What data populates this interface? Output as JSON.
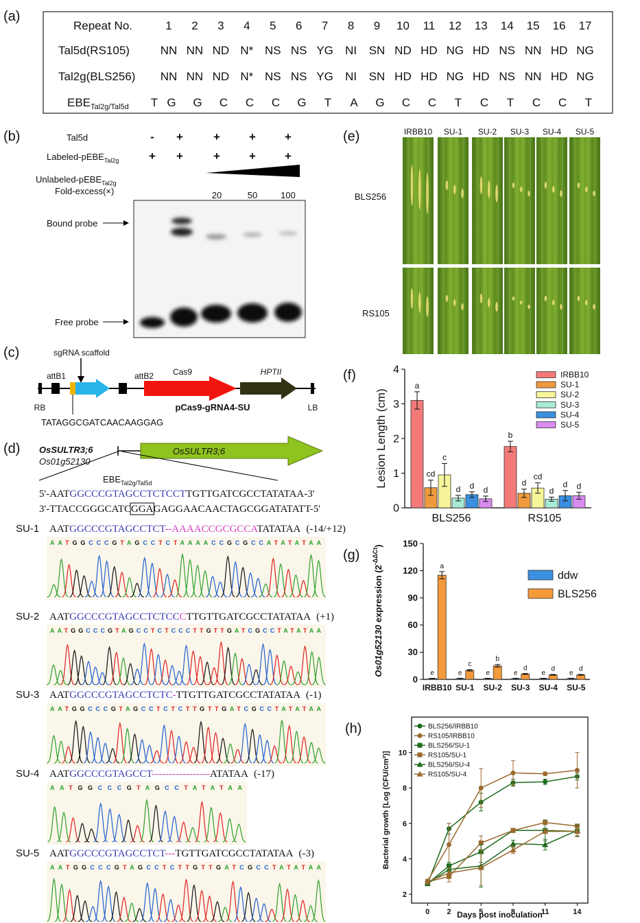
{
  "panel_labels": [
    "(a)",
    "(b)",
    "(c)",
    "(d)",
    "(e)",
    "(f)",
    "(g)",
    "(h)"
  ],
  "panel_a": {
    "header": "Repeat No.",
    "repeats": [
      1,
      2,
      3,
      4,
      5,
      6,
      7,
      8,
      9,
      10,
      11,
      12,
      13,
      14,
      15,
      16,
      17
    ],
    "rows": [
      {
        "name": "Tal5d(RS105)",
        "rvds": [
          "NN",
          "NN",
          "ND",
          "N*",
          "NS",
          "NS",
          "YG",
          "NI",
          "SN",
          "ND",
          "HD",
          "NG",
          "HD",
          "NS",
          "NN",
          "HD",
          "NG"
        ]
      },
      {
        "name": "Tal2g(BLS256)",
        "rvds": [
          "NN",
          "NN",
          "ND",
          "N*",
          "NS",
          "NS",
          "YG",
          "NI",
          "SN",
          "HD",
          "HD",
          "NG",
          "HD",
          "NS",
          "NN",
          "HD",
          "NG"
        ]
      }
    ],
    "ebe": {
      "label": "EBE",
      "sub": "Tal2g/Tal5d",
      "bases": [
        "T",
        "G",
        "G",
        "C",
        "C",
        "C",
        "G",
        "T",
        "A",
        "G",
        "C",
        "C",
        "T",
        "C",
        "T",
        "C",
        "C",
        "T"
      ]
    },
    "highlight_index": 9,
    "highlight_color": "#e8201f"
  },
  "panel_b": {
    "rows": [
      {
        "label": "Tal5d",
        "marks": [
          "-",
          "+",
          "+",
          "+",
          "+"
        ]
      },
      {
        "label": "Labeled-pEBE",
        "sub": "Tal2g",
        "marks": [
          "+",
          "+",
          "+",
          "+",
          "+"
        ]
      }
    ],
    "unlabeled": {
      "label": "Unlabeled-pEBE",
      "sub": "Tal2g"
    },
    "fold_label": "Fold-excess(×)",
    "folds": [
      20,
      50,
      100
    ],
    "bound": "Bound probe",
    "free": "Free probe"
  },
  "panel_c": {
    "scaffold": "sgRNA scaffold",
    "attB1": "attB1",
    "attB2": "attB2",
    "cas9": "Cas9",
    "hpt": "HPTII",
    "rb": "RB",
    "lb": "LB",
    "vector": "pCas9-gRNA4-SU",
    "target": "TATAGGCGATCAACAAGGAG"
  },
  "panel_d": {
    "gene": "OsSULTR3;6",
    "locus": "Os01g52130",
    "arrow": "OsSULTR3;6",
    "ebe": "EBE",
    "ebe_sub": "Tal2g/Tal5d",
    "top": [
      "5'-AAT",
      "GGCCCGTAGCCTCTCCT",
      "TGTTGATCGCCTATATAA-3'"
    ],
    "bottom": [
      "3'-TTACCGGGCATC",
      "GGA",
      "GAGGAACAACTAGCGGATATATT-5'"
    ],
    "mutants": [
      {
        "name": "SU-1",
        "seq": [
          "AAT",
          "GGCCCGTAGCCTCT",
          "--AAAACCGCGCCA",
          "TATATAA"
        ],
        "indel": "(-14/+12)",
        "trace": "AATGGCCCGTAGCCTCTAAAACCGCGCCATATATAA"
      },
      {
        "name": "SU-2",
        "seq": [
          "AAT",
          "GGCCCGTAGCCTCTCC",
          "C",
          "TTGTTGATCGCCTATATAA"
        ],
        "indel": "(+1)",
        "trace": "AATGGCCCGTAGCCTCTCCCTTGTTGATCGCCTATATAA"
      },
      {
        "name": "SU-3",
        "seq": [
          "AAT",
          "GGCCCGTAGCCTCTC",
          "-",
          "TTGTTGATCGCCTATATAA"
        ],
        "indel": "(-1)",
        "trace": "AATGGCCCGTAGCCTCTCTTGTTGATCGCCTATATAA"
      },
      {
        "name": "SU-4",
        "seq": [
          "AAT",
          "GGCCCGTAGCCT",
          "-----------------",
          "ATATAA"
        ],
        "indel": "(-17)",
        "trace": "AATGGCCCGTAGCCTATATAA"
      },
      {
        "name": "SU-5",
        "seq": [
          "AAT",
          "GGCCCGTAGCCTCT",
          "---",
          "TGTTGATCGCCTATATAA"
        ],
        "indel": "(-3)",
        "trace": "AATGGCCCGTAGCCTCTTGTTGATCGCCTATATAA"
      }
    ]
  },
  "panel_e": {
    "columns": [
      "IRBB10",
      "SU-1",
      "SU-2",
      "SU-3",
      "SU-4",
      "SU-5"
    ],
    "rows": [
      "BLS256",
      "RS105"
    ]
  },
  "chart_data": [
    {
      "type": "bar",
      "ylabel": "Lesion Length (cm)",
      "categories": [
        "BLS256",
        "RS105"
      ],
      "ylim": [
        0,
        4
      ],
      "yticks": [
        0,
        1,
        2,
        3,
        4
      ],
      "grid": false,
      "legend": "upper right",
      "series": [
        {
          "name": "IRBB10",
          "color": "#f47a7a",
          "values": [
            3.1,
            1.77
          ],
          "errors": [
            0.25,
            0.15
          ],
          "letters": [
            "a",
            "b"
          ]
        },
        {
          "name": "SU-1",
          "color": "#f09a3e",
          "values": [
            0.58,
            0.42
          ],
          "errors": [
            0.22,
            0.12
          ],
          "letters": [
            "cd",
            "d"
          ]
        },
        {
          "name": "SU-2",
          "color": "#f7f59a",
          "values": [
            0.95,
            0.57
          ],
          "errors": [
            0.33,
            0.15
          ],
          "letters": [
            "c",
            "cd"
          ]
        },
        {
          "name": "SU-3",
          "color": "#a8ead6",
          "values": [
            0.28,
            0.25
          ],
          "errors": [
            0.08,
            0.06
          ],
          "letters": [
            "d",
            "d"
          ]
        },
        {
          "name": "SU-4",
          "color": "#3a8fe0",
          "values": [
            0.38,
            0.35
          ],
          "errors": [
            0.08,
            0.15
          ],
          "letters": [
            "d",
            "d"
          ]
        },
        {
          "name": "SU-5",
          "color": "#d98cf0",
          "values": [
            0.26,
            0.35
          ],
          "errors": [
            0.08,
            0.1
          ],
          "letters": [
            "d",
            "d"
          ]
        }
      ]
    },
    {
      "type": "bar",
      "ylabel": {
        "gene": "Os01g52130",
        "text": " expression (2",
        "sup": "-ΔΔCt",
        "close": ")"
      },
      "categories": [
        "IRBB10",
        "SU-1",
        "SU-2",
        "SU-3",
        "SU-4",
        "SU-5"
      ],
      "ylim": [
        0,
        150
      ],
      "yticks": [
        0,
        30,
        60,
        90,
        120,
        150
      ],
      "grid": false,
      "legend": "upper right",
      "series": [
        {
          "name": "ddw",
          "color": "#3d8fe0",
          "values": [
            1,
            1,
            1,
            1,
            1,
            1
          ],
          "errors": [
            0.2,
            0.2,
            0.2,
            0.2,
            0.2,
            0.2
          ],
          "letters": [
            "e",
            "e",
            "e",
            "e",
            "e",
            "e"
          ]
        },
        {
          "name": "BLS256",
          "color": "#f59a3a",
          "values": [
            115,
            10,
            15,
            6,
            5,
            5
          ],
          "errors": [
            4,
            0.8,
            1.5,
            0.5,
            0.5,
            0.5
          ],
          "letters": [
            "a",
            "c",
            "b",
            "d",
            "d",
            "d"
          ]
        }
      ]
    },
    {
      "type": "line",
      "ylabel": "Bacterial growth [Log (CFU/cm²)]",
      "xlabel": "Days post inoculation",
      "x": [
        0,
        2,
        5,
        8,
        11,
        14
      ],
      "xlim": [
        -1.5,
        15
      ],
      "xticks": [
        0,
        2,
        5,
        8,
        11,
        14
      ],
      "ylim": [
        1.5,
        12
      ],
      "yticks": [
        2,
        4,
        6,
        8,
        10
      ],
      "grid": false,
      "legend": "upper left",
      "series": [
        {
          "name": "BLS256/IRBB10",
          "color": "#1f6b1f",
          "marker": "circle",
          "values": [
            2.6,
            5.7,
            7.2,
            8.3,
            8.35,
            8.65
          ],
          "errors": [
            0.1,
            0.3,
            0.5,
            0.2,
            0.15,
            0.2
          ]
        },
        {
          "name": "RS105/IRBB10",
          "color": "#9b6a2f",
          "marker": "circle",
          "values": [
            2.75,
            4.8,
            8.0,
            8.85,
            8.8,
            9.0
          ],
          "errors": [
            0.1,
            1.2,
            1.1,
            0.7,
            0.1,
            1.0
          ]
        },
        {
          "name": "BLS256/SU-1",
          "color": "#1f6b1f",
          "marker": "square",
          "values": [
            2.6,
            3.6,
            4.4,
            5.6,
            5.6,
            5.55
          ],
          "errors": [
            0.1,
            0.2,
            0.6,
            0.1,
            0.6,
            0.3
          ]
        },
        {
          "name": "RS105/SU-1",
          "color": "#9b6a2f",
          "marker": "square",
          "values": [
            2.7,
            3.0,
            4.9,
            5.6,
            6.05,
            5.85
          ],
          "errors": [
            0.1,
            0.3,
            0.4,
            0.1,
            0.1,
            0.1
          ]
        },
        {
          "name": "BLS256/SU-4",
          "color": "#1f6b1f",
          "marker": "triangle",
          "values": [
            2.6,
            3.4,
            3.6,
            4.85,
            4.8,
            5.6
          ],
          "errors": [
            0.1,
            0.3,
            1.2,
            0.2,
            0.3,
            0.3
          ]
        },
        {
          "name": "RS105/SU-4",
          "color": "#9b6a2f",
          "marker": "triangle",
          "values": [
            2.7,
            3.2,
            3.5,
            4.5,
            5.55,
            5.55
          ],
          "errors": [
            0.1,
            0.3,
            1.0,
            0.2,
            0.1,
            0.3
          ]
        }
      ]
    }
  ]
}
